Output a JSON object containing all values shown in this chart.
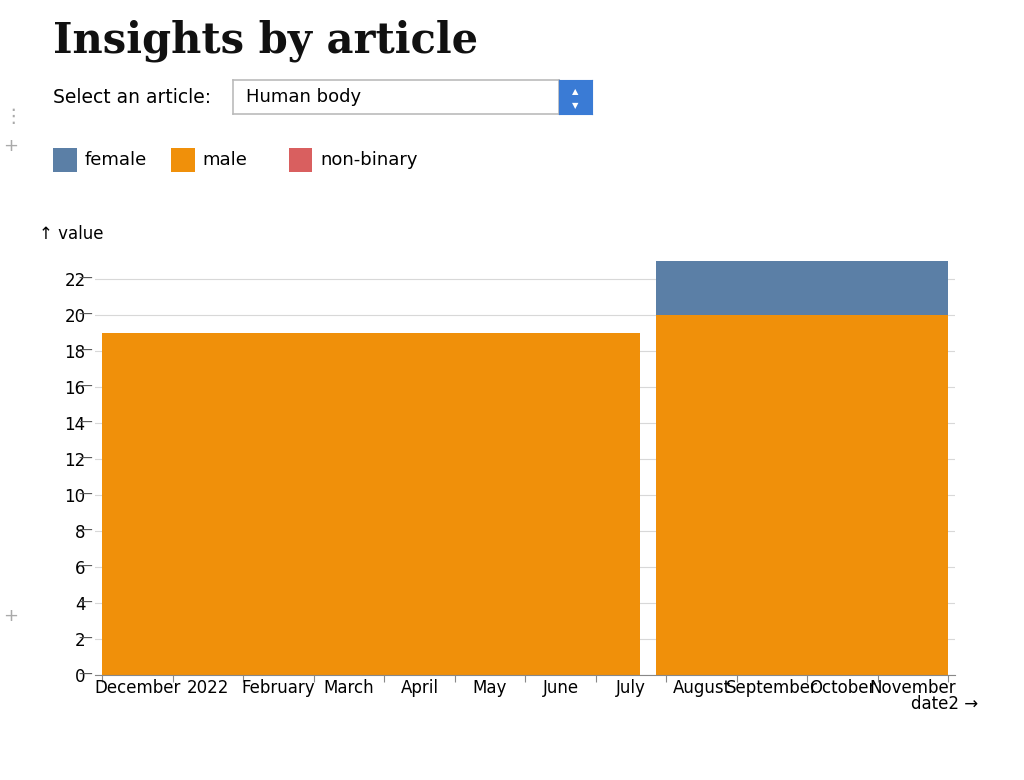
{
  "title": "Insights by article",
  "select_label": "Select an article:",
  "dropdown_value": "Human body",
  "ylabel": "↑ value",
  "xlabel_arrow": "date2 →",
  "legend_items": [
    {
      "label": "female",
      "color": "#5b7fa6"
    },
    {
      "label": "male",
      "color": "#f0900a"
    },
    {
      "label": "non-binary",
      "color": "#d95f5f"
    }
  ],
  "x_tick_labels": [
    "December",
    "2022",
    "February",
    "March",
    "April",
    "May",
    "June",
    "July",
    "August",
    "September",
    "October",
    "November"
  ],
  "yticks": [
    0,
    2,
    4,
    6,
    8,
    10,
    12,
    14,
    16,
    18,
    20,
    22
  ],
  "ylim": [
    0,
    24.5
  ],
  "male_color": "#f0900a",
  "female_color": "#5b7fa6",
  "nonbinary_color": "#d95f5f",
  "bg_color": "#ffffff",
  "grid_color": "#d8d8d8",
  "title_fontsize": 30,
  "axis_fontsize": 12,
  "legend_fontsize": 13,
  "xtick_fontsize": 12
}
